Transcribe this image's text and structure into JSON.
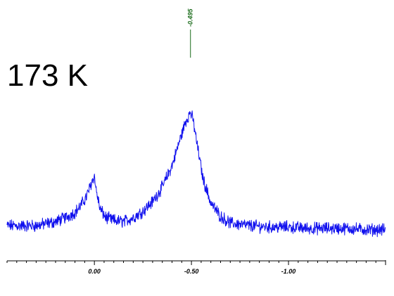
{
  "annotation": {
    "temperature": "173 K"
  },
  "chart_data": {
    "type": "line",
    "title": "",
    "xlabel": "",
    "ylabel": "",
    "x_reversed": true,
    "xlim": [
      0.45,
      -1.5
    ],
    "ylim": [
      0,
      1
    ],
    "grid": false,
    "legend": "none",
    "ticks": {
      "major": [
        0.0,
        -0.5,
        -1.0
      ],
      "major_labels": [
        "0.00",
        "-0.50",
        "-1.00"
      ],
      "minor_step": 0.05
    },
    "peak_marker": {
      "x": -0.495,
      "label": "-0.495",
      "color": "#1a6b1a"
    },
    "series": [
      {
        "color": "#1111ee",
        "x": [
          0.45,
          0.3,
          0.2,
          0.15,
          0.1,
          0.07,
          0.04,
          0.02,
          0.005,
          0.0,
          -0.01,
          -0.03,
          -0.06,
          -0.1,
          -0.15,
          -0.2,
          -0.25,
          -0.3,
          -0.35,
          -0.4,
          -0.44,
          -0.47,
          -0.495,
          -0.51,
          -0.53,
          -0.56,
          -0.6,
          -0.65,
          -0.7,
          -0.8,
          -0.9,
          -1.0,
          -1.1,
          -1.2,
          -1.3,
          -1.4,
          -1.5
        ],
        "y": [
          0.1,
          0.1,
          0.13,
          0.16,
          0.2,
          0.25,
          0.32,
          0.4,
          0.46,
          0.47,
          0.36,
          0.22,
          0.16,
          0.14,
          0.13,
          0.16,
          0.21,
          0.28,
          0.39,
          0.55,
          0.74,
          0.88,
          0.95,
          0.88,
          0.7,
          0.45,
          0.27,
          0.17,
          0.12,
          0.1,
          0.09,
          0.09,
          0.08,
          0.08,
          0.08,
          0.07,
          0.07
        ]
      }
    ]
  }
}
